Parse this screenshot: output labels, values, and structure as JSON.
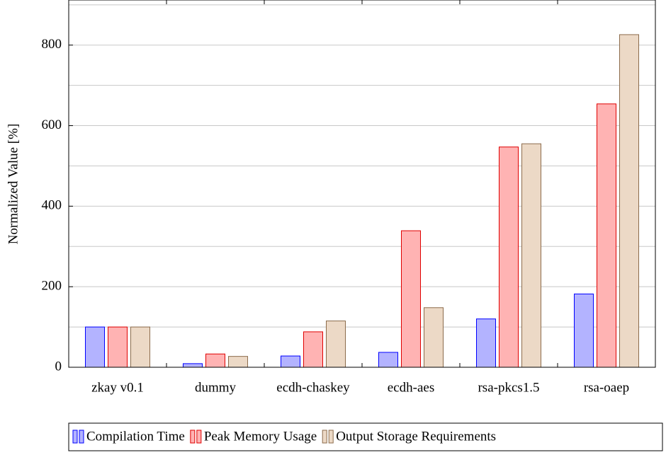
{
  "chart_data": {
    "type": "bar",
    "y_label": "Normalized Value [%]",
    "categories": [
      "zkay v0.1",
      "dummy",
      "ecdh-chaskey",
      "ecdh-aes",
      "rsa-pkcs1.5",
      "rsa-oaep"
    ],
    "series": [
      {
        "name": "Compilation Time",
        "color": "#b3b3ff",
        "stroke": "#0000ff",
        "values": [
          100,
          9,
          28,
          37,
          120,
          182
        ]
      },
      {
        "name": "Peak Memory Usage",
        "color": "#ffb3b3",
        "stroke": "#e00000",
        "values": [
          100,
          33,
          88,
          339,
          547,
          654
        ]
      },
      {
        "name": "Output Storage Requirements",
        "color": "#ecd9c6",
        "stroke": "#8c6c4c",
        "values": [
          100,
          27,
          115,
          148,
          555,
          826
        ]
      }
    ],
    "ylim": [
      0,
      912
    ],
    "yticks": [
      0,
      200,
      400,
      600,
      800
    ],
    "minor_yticks": [
      100,
      300,
      500,
      700,
      900
    ],
    "grid": true,
    "legend": "bottom"
  }
}
